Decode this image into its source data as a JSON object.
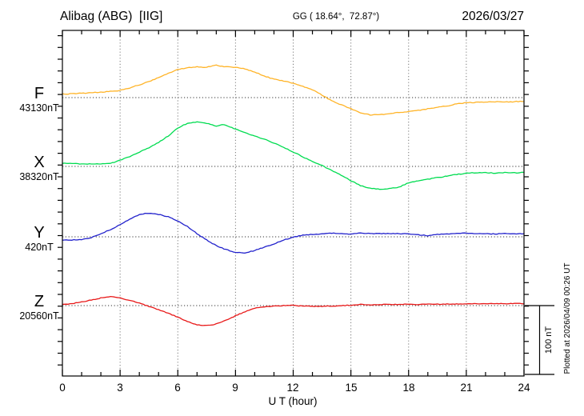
{
  "header": {
    "station": "Alibag (ABG)  [IIG]",
    "coords": "GG ( 18.64°,  72.87°)",
    "date": "2026/03/27"
  },
  "axis": {
    "xlabel": "U T (hour)",
    "hour_labels": [
      "0",
      "3",
      "6",
      "9",
      "12",
      "15",
      "18",
      "21",
      "24"
    ]
  },
  "scalebar": {
    "label": "100 nT",
    "nT": 100
  },
  "plot_note": "Plotted at 2026/04/09 00:26 UT",
  "chart_data": {
    "type": "line",
    "title": "Alibag (ABG) [IIG] magnetogram",
    "date": "2026/03/27",
    "coords_label": "GG ( 18.64°, 72.87°)",
    "xlabel": "U T (hour)",
    "x_range": [
      0,
      24
    ],
    "x_major_ticks": [
      0,
      3,
      6,
      9,
      12,
      15,
      18,
      21,
      24
    ],
    "scale_nT_per_bar": 100,
    "series": [
      {
        "name": "F",
        "color": "#FFB428",
        "baseline_label": "43130nT",
        "baseline_nT": 43130,
        "offsets_nT": [
          [
            0,
            5.2
          ],
          [
            0.5,
            5.5
          ],
          [
            1,
            6.4
          ],
          [
            1.5,
            7.0
          ],
          [
            2,
            8.1
          ],
          [
            2.5,
            9.0
          ],
          [
            3,
            10.4
          ],
          [
            3.5,
            14.0
          ],
          [
            4,
            18.5
          ],
          [
            4.5,
            23.0
          ],
          [
            5,
            28.9
          ],
          [
            5.5,
            35.0
          ],
          [
            6,
            40.5
          ],
          [
            6.5,
            43.4
          ],
          [
            7,
            44.5
          ],
          [
            7.5,
            43.9
          ],
          [
            8,
            46.8
          ],
          [
            8.5,
            44.5
          ],
          [
            9,
            43.9
          ],
          [
            9.5,
            41.6
          ],
          [
            10,
            37.0
          ],
          [
            10.5,
            31.2
          ],
          [
            11,
            26.6
          ],
          [
            11.5,
            24.0
          ],
          [
            12,
            20.8
          ],
          [
            12.5,
            16.2
          ],
          [
            13,
            11.6
          ],
          [
            13.5,
            3.5
          ],
          [
            14,
            -4.6
          ],
          [
            14.5,
            -10.4
          ],
          [
            15,
            -16.2
          ],
          [
            15.5,
            -22.0
          ],
          [
            16,
            -24.9
          ],
          [
            16.5,
            -24.9
          ],
          [
            17,
            -23.1
          ],
          [
            17.5,
            -21.4
          ],
          [
            18,
            -20.2
          ],
          [
            18.5,
            -18.5
          ],
          [
            19,
            -16.2
          ],
          [
            19.5,
            -13.9
          ],
          [
            20,
            -12.1
          ],
          [
            20.5,
            -9.2
          ],
          [
            21,
            -7.5
          ],
          [
            21.5,
            -6.9
          ],
          [
            22,
            -6.4
          ],
          [
            22.5,
            -5.8
          ],
          [
            23,
            -6.4
          ],
          [
            23.5,
            -5.8
          ],
          [
            24,
            -5.2
          ]
        ]
      },
      {
        "name": "X",
        "color": "#00DC50",
        "baseline_label": "38320nT",
        "baseline_nT": 38320,
        "offsets_nT": [
          [
            0,
            4.3
          ],
          [
            0.5,
            4.0
          ],
          [
            1,
            3.5
          ],
          [
            1.5,
            3.5
          ],
          [
            2,
            3.5
          ],
          [
            2.5,
            4.0
          ],
          [
            3,
            9.2
          ],
          [
            3.5,
            13.9
          ],
          [
            4,
            20.8
          ],
          [
            4.5,
            26.6
          ],
          [
            5,
            34.7
          ],
          [
            5.5,
            43.9
          ],
          [
            6,
            55.5
          ],
          [
            6.5,
            62.4
          ],
          [
            7,
            64.2
          ],
          [
            7.5,
            62.4
          ],
          [
            8,
            58.4
          ],
          [
            8.3,
            60.1
          ],
          [
            8.5,
            59.5
          ],
          [
            9,
            53.8
          ],
          [
            9.5,
            48.6
          ],
          [
            10,
            43.9
          ],
          [
            10.5,
            39.3
          ],
          [
            11,
            33.5
          ],
          [
            11.5,
            27.7
          ],
          [
            12,
            20.8
          ],
          [
            12.5,
            13.9
          ],
          [
            13,
            6.9
          ],
          [
            13.5,
            1.2
          ],
          [
            14,
            -5.8
          ],
          [
            14.5,
            -12.7
          ],
          [
            15,
            -20.8
          ],
          [
            15.5,
            -27.7
          ],
          [
            16,
            -31.8
          ],
          [
            16.5,
            -32.9
          ],
          [
            17,
            -31.8
          ],
          [
            17.5,
            -30.1
          ],
          [
            18,
            -23.7
          ],
          [
            18.5,
            -20.8
          ],
          [
            19,
            -18.5
          ],
          [
            19.5,
            -16.2
          ],
          [
            20,
            -13.9
          ],
          [
            20.5,
            -11.6
          ],
          [
            21,
            -9.8
          ],
          [
            21.5,
            -9.2
          ],
          [
            22,
            -8.7
          ],
          [
            22.5,
            -9.8
          ],
          [
            23,
            -8.7
          ],
          [
            23.5,
            -9.2
          ],
          [
            24,
            -8.7
          ]
        ]
      },
      {
        "name": "Y",
        "color": "#2222CC",
        "baseline_label": "420nT",
        "baseline_nT": 420,
        "offsets_nT": [
          [
            0,
            -4.6
          ],
          [
            0.5,
            -4.6
          ],
          [
            1,
            -4.0
          ],
          [
            1.5,
            -1.2
          ],
          [
            2,
            4.6
          ],
          [
            2.5,
            10.4
          ],
          [
            3,
            17.3
          ],
          [
            3.5,
            25.4
          ],
          [
            4,
            32.4
          ],
          [
            4.5,
            34.1
          ],
          [
            5,
            32.4
          ],
          [
            5.5,
            28.9
          ],
          [
            6,
            23.1
          ],
          [
            6.5,
            15.0
          ],
          [
            7,
            4.6
          ],
          [
            7.5,
            -4.6
          ],
          [
            8,
            -12.7
          ],
          [
            8.5,
            -18.5
          ],
          [
            9,
            -22.5
          ],
          [
            9.5,
            -23.1
          ],
          [
            10,
            -19.7
          ],
          [
            10.5,
            -15.0
          ],
          [
            11,
            -10.4
          ],
          [
            11.5,
            -4.6
          ],
          [
            12,
            -0.6
          ],
          [
            12.5,
            2.3
          ],
          [
            13,
            3.5
          ],
          [
            13.5,
            4.0
          ],
          [
            14,
            5.2
          ],
          [
            14.5,
            4.6
          ],
          [
            15,
            4.0
          ],
          [
            15.5,
            5.8
          ],
          [
            16,
            4.6
          ],
          [
            16.5,
            4.6
          ],
          [
            17,
            4.6
          ],
          [
            17.5,
            4.6
          ],
          [
            18,
            4.0
          ],
          [
            18.5,
            2.9
          ],
          [
            19,
            1.7
          ],
          [
            19.5,
            3.5
          ],
          [
            20,
            4.0
          ],
          [
            20.5,
            4.6
          ],
          [
            21,
            5.2
          ],
          [
            21.5,
            4.6
          ],
          [
            22,
            4.6
          ],
          [
            22.5,
            4.0
          ],
          [
            23,
            4.6
          ],
          [
            23.5,
            4.0
          ],
          [
            24,
            4.6
          ]
        ]
      },
      {
        "name": "Z",
        "color": "#E81818",
        "baseline_label": "20560nT",
        "baseline_nT": 20560,
        "offsets_nT": [
          [
            0,
            1.5
          ],
          [
            0.5,
            2.9
          ],
          [
            1,
            5.2
          ],
          [
            1.5,
            8.1
          ],
          [
            2,
            11.0
          ],
          [
            2.5,
            12.9
          ],
          [
            3,
            11.0
          ],
          [
            3.5,
            7.5
          ],
          [
            4,
            3.5
          ],
          [
            4.5,
            -1.2
          ],
          [
            5,
            -5.8
          ],
          [
            5.5,
            -11.0
          ],
          [
            6,
            -16.8
          ],
          [
            6.5,
            -23.1
          ],
          [
            7,
            -27.7
          ],
          [
            7.3,
            -29.2
          ],
          [
            7.5,
            -28.9
          ],
          [
            8,
            -26.6
          ],
          [
            8.5,
            -21.4
          ],
          [
            9,
            -14.5
          ],
          [
            9.5,
            -8.7
          ],
          [
            10,
            -4.0
          ],
          [
            10.5,
            -1.7
          ],
          [
            11,
            -0.6
          ],
          [
            11.5,
            0.0
          ],
          [
            12,
            0.3
          ],
          [
            12.5,
            -0.6
          ],
          [
            13,
            -1.2
          ],
          [
            13.5,
            -0.9
          ],
          [
            14,
            -0.6
          ],
          [
            14.5,
            0.0
          ],
          [
            15,
            0.6
          ],
          [
            15.5,
            1.7
          ],
          [
            16,
            1.2
          ],
          [
            16.5,
            1.4
          ],
          [
            17,
            1.7
          ],
          [
            17.5,
            1.7
          ],
          [
            18,
            2.0
          ],
          [
            18.5,
            1.7
          ],
          [
            19,
            2.3
          ],
          [
            19.5,
            2.0
          ],
          [
            20,
            2.3
          ],
          [
            20.5,
            2.5
          ],
          [
            21,
            2.3
          ],
          [
            21.5,
            2.9
          ],
          [
            22,
            2.5
          ],
          [
            22.5,
            2.9
          ],
          [
            23,
            2.5
          ],
          [
            23.5,
            2.9
          ],
          [
            24,
            2.9
          ]
        ]
      }
    ]
  }
}
